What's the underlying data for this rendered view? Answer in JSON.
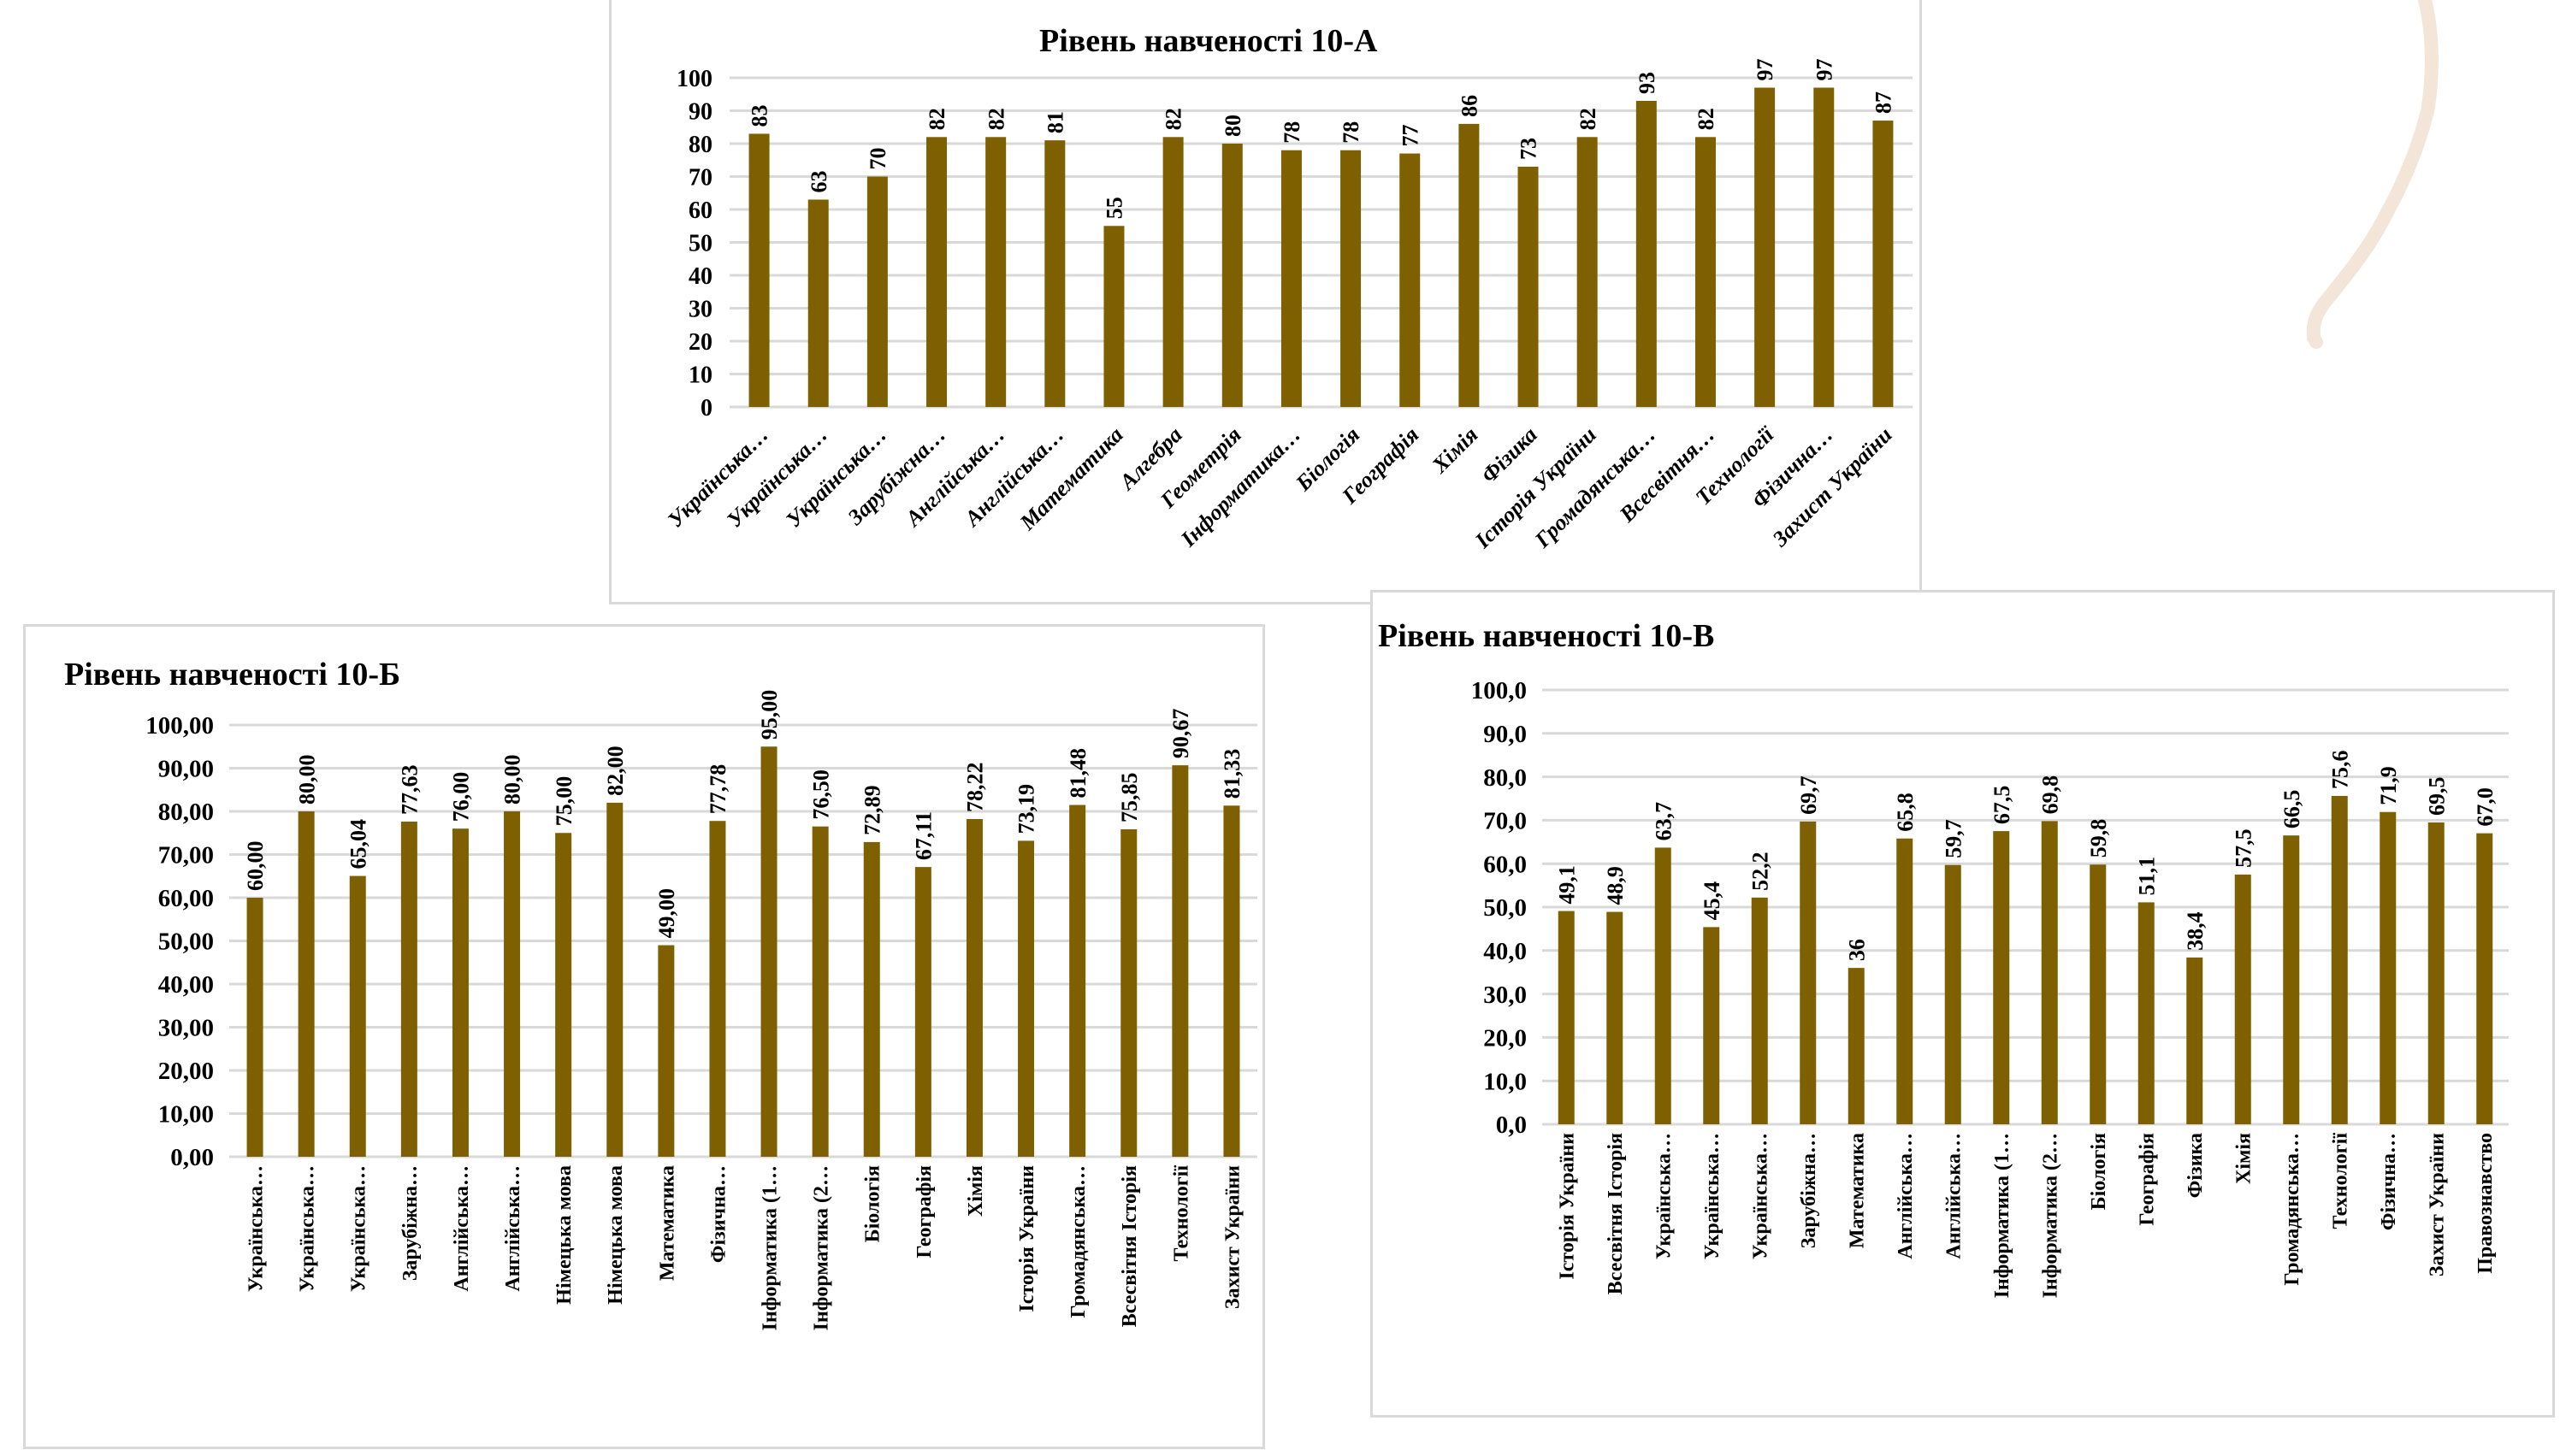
{
  "decor": {
    "accent_color": "#f3e5d8"
  },
  "chart_data": [
    {
      "id": "10a",
      "type": "bar",
      "title": "Рівень навченості 10-А",
      "xlabel": "",
      "ylabel": "",
      "ylim": [
        0,
        100
      ],
      "yticks": [
        0,
        10,
        20,
        30,
        40,
        50,
        60,
        70,
        80,
        90,
        100
      ],
      "ytick_labels": [
        "0",
        "10",
        "20",
        "30",
        "40",
        "50",
        "60",
        "70",
        "80",
        "90",
        "100"
      ],
      "grid": true,
      "legend": "none",
      "bar_color": "#7f6000",
      "label_rotation": "diagonal",
      "categories": [
        "Українська…",
        "Українська…",
        "Українська…",
        "Зарубіжна…",
        "Англійська…",
        "Англійська…",
        "Математика",
        "Алгебра",
        "Геометрія",
        "Інформатика…",
        "Біологія",
        "Географія",
        "Хімія",
        "Фізика",
        "Історія  України",
        "Громадянська…",
        "Всесвітня…",
        "Технології",
        "Фізична…",
        "Захист України"
      ],
      "values": [
        83,
        63,
        70,
        82,
        82,
        81,
        55,
        82,
        80,
        78,
        78,
        77,
        86,
        73,
        82,
        93,
        82,
        97,
        97,
        87
      ],
      "data_labels": [
        "83",
        "63",
        "70",
        "82",
        "82",
        "81",
        "55",
        "82",
        "80",
        "78",
        "78",
        "77",
        "86",
        "73",
        "82",
        "93",
        "82",
        "97",
        "97",
        "87"
      ]
    },
    {
      "id": "10b",
      "type": "bar",
      "title": "Рівень навченості 10-Б",
      "xlabel": "",
      "ylabel": "",
      "ylim": [
        0,
        100
      ],
      "yticks": [
        0,
        10,
        20,
        30,
        40,
        50,
        60,
        70,
        80,
        90,
        100
      ],
      "ytick_labels": [
        "0,00",
        "10,00",
        "20,00",
        "30,00",
        "40,00",
        "50,00",
        "60,00",
        "70,00",
        "80,00",
        "90,00",
        "100,00"
      ],
      "grid": true,
      "legend": "none",
      "bar_color": "#7f6000",
      "label_rotation": "vertical",
      "categories": [
        "Українська…",
        "Українська…",
        "Українська…",
        "Зарубіжна…",
        "Англійська…",
        "Англійська…",
        "Німецька мова",
        "Німецька мова",
        "Математика",
        "Фізична…",
        "Інформатика (1…",
        "Інформатика (2…",
        "Біологія",
        "Географія",
        "Хімія",
        "Історія  України",
        "Громадянська…",
        "Всесвітня Історія",
        "Технології",
        "Захист України"
      ],
      "values": [
        60.0,
        80.0,
        65.04,
        77.63,
        76.0,
        80.0,
        75.0,
        82.0,
        49.0,
        77.78,
        95.0,
        76.5,
        72.89,
        67.11,
        78.22,
        73.19,
        81.48,
        75.85,
        90.67,
        81.33
      ],
      "data_labels": [
        "60,00",
        "80,00",
        "65,04",
        "77,63",
        "76,00",
        "80,00",
        "75,00",
        "82,00",
        "49,00",
        "77,78",
        "95,00",
        "76,50",
        "72,89",
        "67,11",
        "78,22",
        "73,19",
        "81,48",
        "75,85",
        "90,67",
        "81,33"
      ]
    },
    {
      "id": "10v",
      "type": "bar",
      "title": "Рівень навченості 10-В",
      "xlabel": "",
      "ylabel": "",
      "ylim": [
        0,
        100
      ],
      "yticks": [
        0,
        10,
        20,
        30,
        40,
        50,
        60,
        70,
        80,
        90,
        100
      ],
      "ytick_labels": [
        "0,0",
        "10,0",
        "20,0",
        "30,0",
        "40,0",
        "50,0",
        "60,0",
        "70,0",
        "80,0",
        "90,0",
        "100,0"
      ],
      "grid": true,
      "legend": "none",
      "bar_color": "#7f6000",
      "label_rotation": "vertical",
      "categories": [
        "Історія  України",
        "Всесвітня Історія",
        "Українська…",
        "Українська…",
        "Українська…",
        "Зарубіжна…",
        "Математика",
        "Англійська…",
        "Англійська…",
        "Інформатика (1…",
        "Інформатика (2…",
        "Біологія",
        "Географія",
        "Фізика",
        "Хімія",
        "Громадянська…",
        "Технології",
        "Фізична…",
        "Захист України",
        "Правознавство"
      ],
      "values": [
        49.1,
        48.9,
        63.7,
        45.4,
        52.2,
        69.7,
        36,
        65.8,
        59.7,
        67.5,
        69.8,
        59.8,
        51.1,
        38.4,
        57.5,
        66.5,
        75.6,
        71.9,
        69.5,
        67.0
      ],
      "data_labels": [
        "49,1",
        "48,9",
        "63,7",
        "45,4",
        "52,2",
        "69,7",
        "36",
        "65,8",
        "59,7",
        "67,5",
        "69,8",
        "59,8",
        "51,1",
        "38,4",
        "57,5",
        "66,5",
        "75,6",
        "71,9",
        "69,5",
        "67,0"
      ]
    }
  ]
}
